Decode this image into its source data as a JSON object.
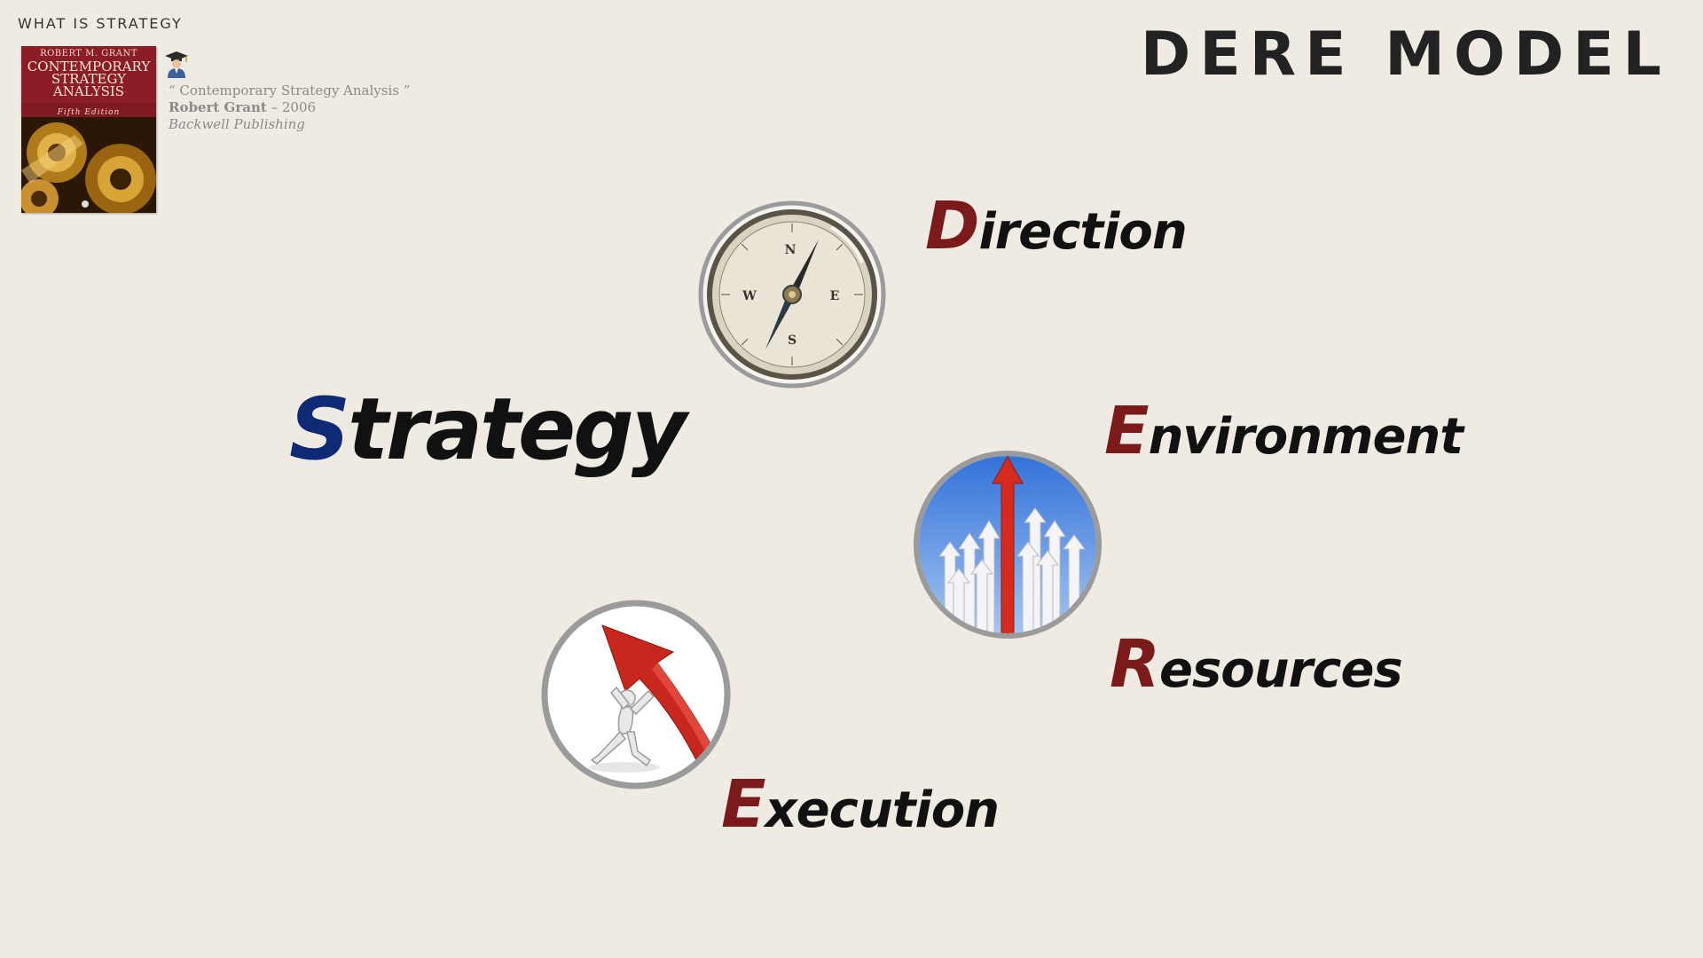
{
  "header": {
    "section_label": "WHAT IS STRATEGY",
    "title": "DERE MODEL"
  },
  "book": {
    "author": "ROBERT M. GRANT",
    "title_lines": [
      "CONTEMPORARY",
      "STRATEGY",
      "ANALYSIS"
    ],
    "edition": "Fifth Edition"
  },
  "citation": {
    "line1": "“ Contemporary Strategy Analysis ”",
    "author": "Robert Grant",
    "year": "– 2006",
    "publisher": "Backwell Publishing"
  },
  "main_word": {
    "initial": "S",
    "rest": "trategy"
  },
  "dere": {
    "direction": {
      "initial": "D",
      "rest": "irection"
    },
    "environment": {
      "initial": "E",
      "rest": "nvironment"
    },
    "resources": {
      "initial": "R",
      "rest": "esources"
    },
    "execution": {
      "initial": "E",
      "rest": "xecution"
    }
  },
  "icons": {
    "book": "book-cover",
    "professor": "graduate-professor-icon",
    "compass": "compass-icon",
    "arrows": "rising-arrows-icon",
    "figure": "figure-pushing-arrow-icon"
  },
  "colors": {
    "background": "#efebe2",
    "initial_red": "#7a1a1a",
    "strategy_blue": "#0e2a74"
  }
}
